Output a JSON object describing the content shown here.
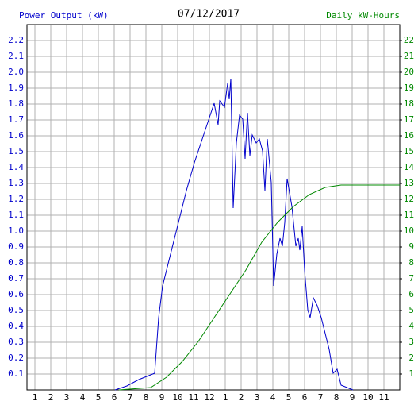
{
  "chart_data": {
    "type": "line",
    "title": "07/12/2017",
    "y_label": "Power Output (kW)",
    "y2_label": "Daily kW-Hours",
    "xlim": [
      0.5,
      24
    ],
    "xticks": [
      1,
      2,
      3,
      4,
      5,
      6,
      7,
      8,
      9,
      10,
      11,
      12,
      {
        "value": 13,
        "label": "1"
      },
      {
        "value": 14,
        "label": "2"
      },
      {
        "value": 15,
        "label": "3"
      },
      {
        "value": 16,
        "label": "4"
      },
      {
        "value": 17,
        "label": "5"
      },
      {
        "value": 18,
        "label": "6"
      },
      {
        "value": 19,
        "label": "7"
      },
      {
        "value": 20,
        "label": "8"
      },
      {
        "value": 21,
        "label": "9"
      },
      {
        "value": 22,
        "label": "10"
      },
      {
        "value": 23,
        "label": "11"
      }
    ],
    "ylim": [
      0,
      2.3
    ],
    "yticks": [
      0.1,
      0.2,
      0.3,
      0.4,
      0.5,
      0.6,
      0.7,
      0.8,
      0.9,
      {
        "value": 1,
        "label": "1.0"
      },
      1.1,
      1.2,
      1.3,
      1.4,
      1.5,
      1.6,
      1.7,
      1.8,
      1.9,
      {
        "value": 2,
        "label": "2.0"
      },
      2.1,
      2.2
    ],
    "y2lim": [
      0,
      23
    ],
    "y2ticks": [
      1,
      2,
      3,
      4,
      5,
      6,
      7,
      8,
      9,
      10,
      11,
      12,
      13,
      14,
      15,
      16,
      17,
      18,
      19,
      20,
      21,
      22
    ],
    "grid": true,
    "series": [
      {
        "color": "#0000cc",
        "axis": "y",
        "x": [
          6.05,
          6.8,
          7.55,
          8.55,
          8.8,
          9.05,
          9.55,
          10.05,
          10.55,
          11.05,
          11.55,
          12.05,
          12.3,
          12.55,
          12.65,
          12.95,
          13.15,
          13.25,
          13.35,
          13.5,
          13.7,
          13.9,
          14.1,
          14.25,
          14.4,
          14.55,
          14.7,
          14.95,
          15.15,
          15.35,
          15.5,
          15.65,
          15.9,
          16.05,
          16.25,
          16.45,
          16.6,
          16.75,
          16.9,
          17.2,
          17.45,
          17.6,
          17.7,
          17.85,
          18.0,
          18.2,
          18.35,
          18.55,
          18.8,
          19.05,
          19.55,
          19.8,
          20.05,
          20.3,
          21.05
        ],
        "values": [
          0,
          0.025,
          0.065,
          0.105,
          0.455,
          0.655,
          0.855,
          1.055,
          1.255,
          1.43,
          1.58,
          1.73,
          1.805,
          1.67,
          1.82,
          1.78,
          1.93,
          1.83,
          1.96,
          1.145,
          1.555,
          1.73,
          1.705,
          1.455,
          1.745,
          1.475,
          1.605,
          1.555,
          1.58,
          1.505,
          1.255,
          1.58,
          1.305,
          0.655,
          0.855,
          0.955,
          0.905,
          1.055,
          1.33,
          1.155,
          0.905,
          0.955,
          0.88,
          1.03,
          0.755,
          0.505,
          0.455,
          0.58,
          0.53,
          0.455,
          0.255,
          0.105,
          0.13,
          0.03,
          0
        ]
      },
      {
        "color": "#008800",
        "axis": "y2",
        "x": [
          6.3,
          8.3,
          9.3,
          10.3,
          11.3,
          12.3,
          13.3,
          14.3,
          15.3,
          16.3,
          17.3,
          18.3,
          19.3,
          20.3,
          24
        ],
        "values": [
          0,
          0.15,
          0.8,
          1.8,
          3.05,
          4.55,
          6.05,
          7.55,
          9.3,
          10.55,
          11.55,
          12.3,
          12.75,
          12.9,
          12.9
        ]
      }
    ]
  }
}
